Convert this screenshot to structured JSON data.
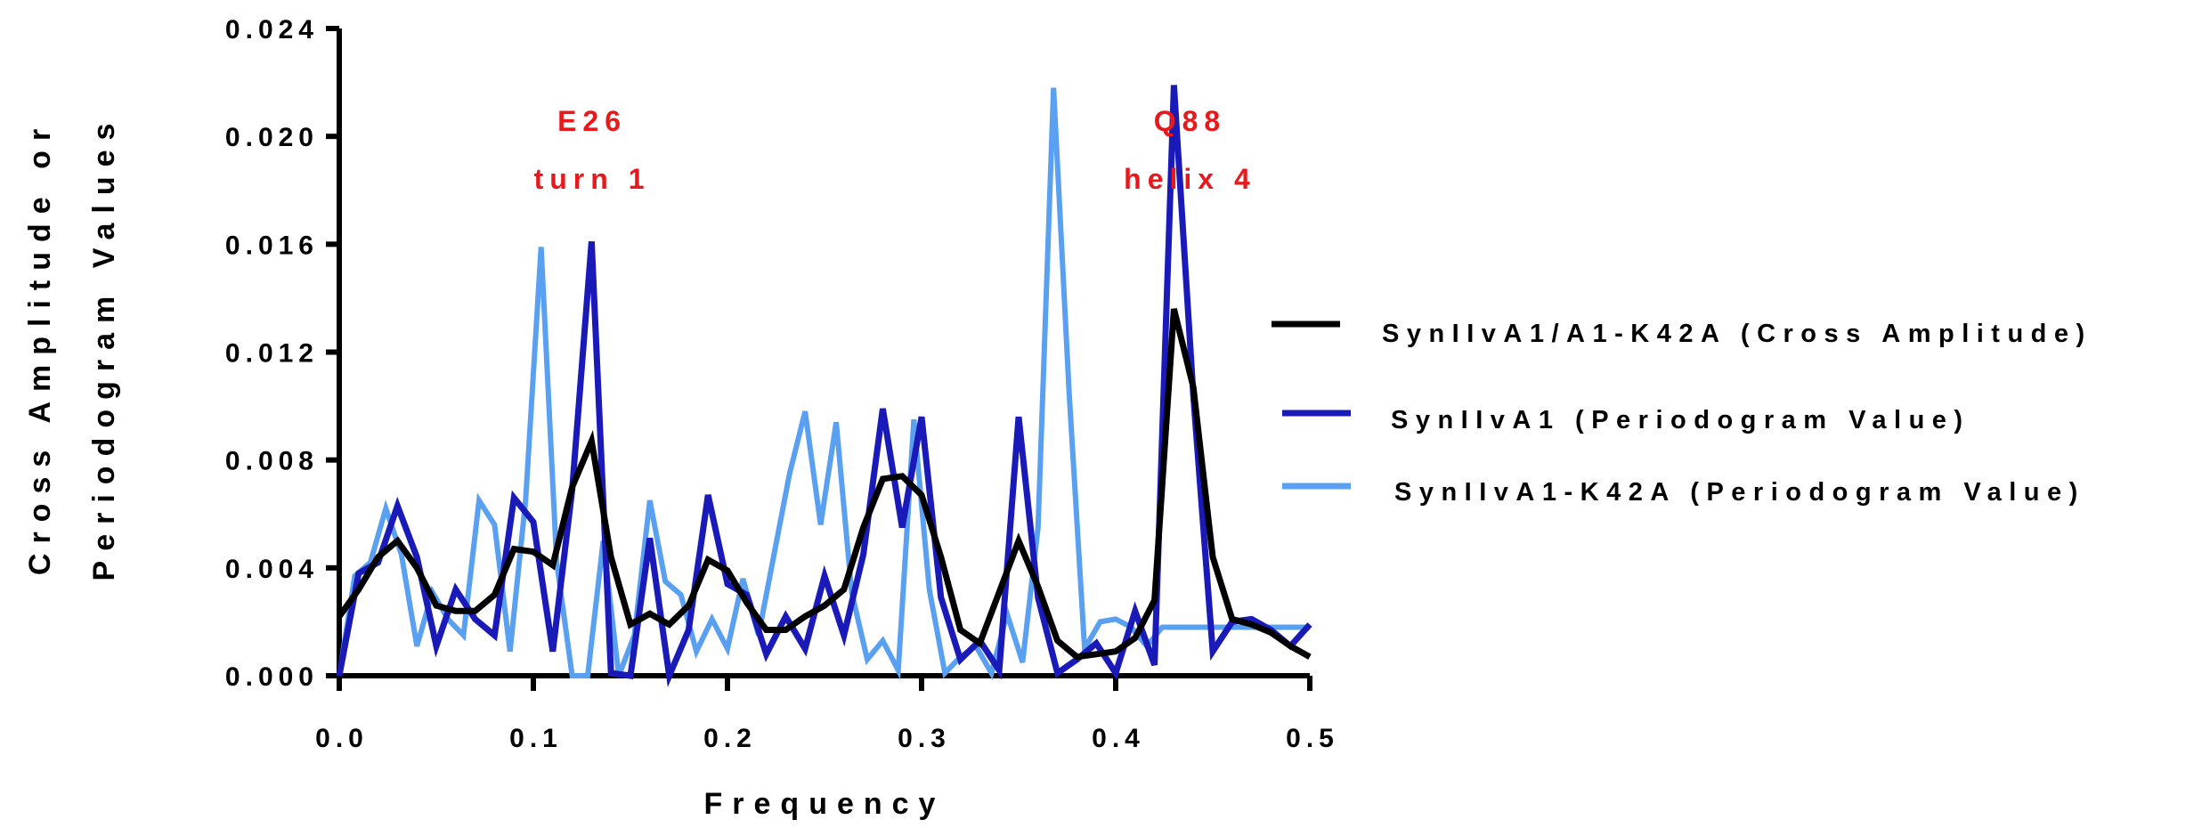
{
  "chart_data": {
    "type": "line",
    "xlabel": "Frequency",
    "ylabel_lines": [
      "Cross Amplitude or",
      "Periodogram Values"
    ],
    "xlim": [
      0,
      0.5
    ],
    "ylim": [
      0,
      0.024
    ],
    "x_ticks": [
      "0.0",
      "0.1",
      "0.2",
      "0.3",
      "0.4",
      "0.5"
    ],
    "y_ticks": [
      "0.000",
      "0.004",
      "0.008",
      "0.012",
      "0.016",
      "0.020",
      "0.024"
    ],
    "grid": false,
    "legend_position": "right",
    "series": [
      {
        "name": "SynIIvA1-K42A (Periodogram Value)",
        "color": "#5aa0f0",
        "x": [
          0.0,
          0.008,
          0.016,
          0.024,
          0.032,
          0.04,
          0.048,
          0.056,
          0.064,
          0.072,
          0.08,
          0.088,
          0.096,
          0.104,
          0.112,
          0.12,
          0.128,
          0.136,
          0.144,
          0.152,
          0.16,
          0.168,
          0.176,
          0.184,
          0.192,
          0.2,
          0.208,
          0.216,
          0.224,
          0.232,
          0.24,
          0.248,
          0.256,
          0.264,
          0.272,
          0.28,
          0.288,
          0.296,
          0.304,
          0.312,
          0.32,
          0.328,
          0.336,
          0.344,
          0.352,
          0.36,
          0.368,
          0.376,
          0.384,
          0.392,
          0.4,
          0.408,
          0.416,
          0.424,
          0.432,
          0.44,
          0.448,
          0.456,
          0.464,
          0.472,
          0.48,
          0.488,
          0.496,
          0.5
        ],
        "values": [
          0.0,
          0.0037,
          0.0042,
          0.0062,
          0.0045,
          0.0011,
          0.0031,
          0.0021,
          0.0015,
          0.0065,
          0.0056,
          0.0009,
          0.0065,
          0.0159,
          0.0042,
          0.0,
          0.0,
          0.005,
          0.0,
          0.0015,
          0.0065,
          0.0035,
          0.003,
          0.0009,
          0.0021,
          0.001,
          0.0036,
          0.0015,
          0.0045,
          0.0075,
          0.0098,
          0.0056,
          0.0094,
          0.0031,
          0.0006,
          0.0013,
          0.0002,
          0.0095,
          0.0032,
          0.0001,
          0.0007,
          0.0011,
          0.0001,
          0.0023,
          0.0005,
          0.0055,
          0.0218,
          0.0105,
          0.001,
          0.002,
          0.0021,
          0.0018,
          0.0011,
          0.0018,
          0.0018,
          0.0018,
          0.0018,
          0.0018,
          0.0018,
          0.0018,
          0.0018,
          0.0018,
          0.0018,
          0.0018
        ]
      },
      {
        "name": "SynIIvA1 (Periodogram Value)",
        "color": "#1a1ab8",
        "x": [
          0.0,
          0.01,
          0.02,
          0.03,
          0.04,
          0.05,
          0.06,
          0.07,
          0.08,
          0.09,
          0.1,
          0.11,
          0.12,
          0.13,
          0.14,
          0.15,
          0.16,
          0.17,
          0.18,
          0.19,
          0.2,
          0.21,
          0.22,
          0.23,
          0.24,
          0.25,
          0.26,
          0.27,
          0.28,
          0.29,
          0.3,
          0.31,
          0.32,
          0.33,
          0.34,
          0.35,
          0.36,
          0.37,
          0.38,
          0.39,
          0.4,
          0.41,
          0.42,
          0.43,
          0.44,
          0.45,
          0.46,
          0.47,
          0.48,
          0.49,
          0.5
        ],
        "values": [
          0.0,
          0.0038,
          0.0042,
          0.0063,
          0.0044,
          0.0011,
          0.0032,
          0.0021,
          0.0015,
          0.0066,
          0.0057,
          0.0009,
          0.0069,
          0.0161,
          0.0001,
          0.0,
          0.0051,
          0.0,
          0.0017,
          0.0067,
          0.0034,
          0.003,
          0.0008,
          0.0022,
          0.001,
          0.0037,
          0.0015,
          0.0045,
          0.0099,
          0.0055,
          0.0096,
          0.0029,
          0.0006,
          0.0013,
          0.0002,
          0.0096,
          0.0029,
          0.0001,
          0.0006,
          0.0012,
          0.0001,
          0.0024,
          0.0004,
          0.0219,
          0.0104,
          0.0009,
          0.002,
          0.0021,
          0.0017,
          0.0011,
          0.0019
        ]
      },
      {
        "name": "SynIIvA1/A1-K42A (Cross Amplitude)",
        "color": "#000000",
        "x": [
          0.0,
          0.01,
          0.02,
          0.03,
          0.04,
          0.05,
          0.06,
          0.07,
          0.08,
          0.09,
          0.1,
          0.11,
          0.12,
          0.13,
          0.14,
          0.15,
          0.16,
          0.17,
          0.18,
          0.19,
          0.2,
          0.21,
          0.22,
          0.23,
          0.24,
          0.25,
          0.26,
          0.27,
          0.28,
          0.29,
          0.3,
          0.31,
          0.32,
          0.33,
          0.34,
          0.35,
          0.36,
          0.37,
          0.38,
          0.39,
          0.4,
          0.41,
          0.42,
          0.43,
          0.44,
          0.45,
          0.46,
          0.47,
          0.48,
          0.49,
          0.5
        ],
        "values": [
          0.0022,
          0.0032,
          0.0044,
          0.005,
          0.004,
          0.0026,
          0.0024,
          0.0024,
          0.003,
          0.0047,
          0.0046,
          0.0041,
          0.007,
          0.0087,
          0.0044,
          0.0019,
          0.0023,
          0.0019,
          0.0026,
          0.0043,
          0.0039,
          0.0027,
          0.0017,
          0.0017,
          0.0022,
          0.0026,
          0.0032,
          0.0055,
          0.0073,
          0.0074,
          0.0067,
          0.0044,
          0.0017,
          0.0012,
          0.0031,
          0.005,
          0.0033,
          0.0013,
          0.0007,
          0.0008,
          0.0009,
          0.0014,
          0.0028,
          0.0136,
          0.0107,
          0.0044,
          0.0021,
          0.0019,
          0.0016,
          0.0011,
          0.0007
        ]
      }
    ],
    "annotations": [
      {
        "lines": [
          "E26",
          "turn 1"
        ],
        "x": 0.128,
        "color": "#e8191c"
      },
      {
        "lines": [
          "Q88",
          "helix 4"
        ],
        "x": 0.436,
        "color": "#e8191c"
      }
    ]
  },
  "legend": {
    "items": [
      {
        "label": "SynIIvA1/A1-K42A (Cross Amplitude)",
        "color": "#000000"
      },
      {
        "label": "SynIIvA1 (Periodogram Value)",
        "color": "#1a1ab8"
      },
      {
        "label": "SynIIvA1-K42A (Periodogram Value)",
        "color": "#5aa0f0"
      }
    ]
  }
}
